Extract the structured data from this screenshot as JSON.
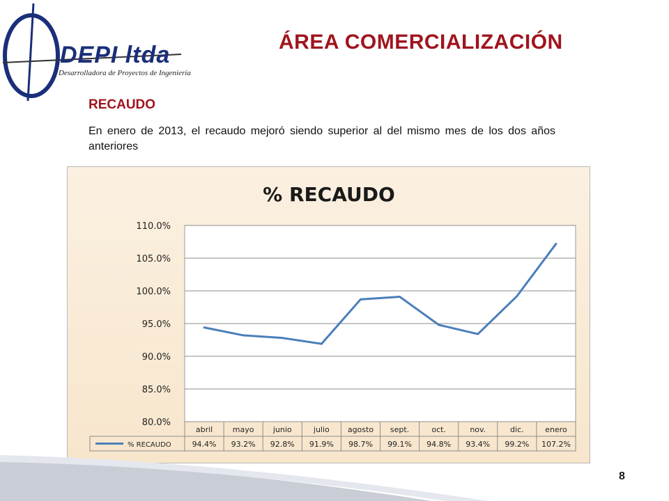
{
  "logo": {
    "name": "DEPI ltda",
    "tagline": "Desarrolladora de Proyectos de Ingeniería"
  },
  "slide": {
    "title": "ÁREA COMERCIALIZACIÓN",
    "section": "RECAUDO",
    "text": "En enero de 2013, el recaudo mejoró siendo superior al del mismo mes de los dos años anteriores",
    "page_number": "8"
  },
  "colors": {
    "title": "#a0141e",
    "series": "#4a7ebb",
    "chart_bg": "#f9ebd6"
  },
  "chart_data": {
    "type": "line",
    "title": "% RECAUDO",
    "categories": [
      "abril",
      "mayo",
      "junio",
      "julio",
      "agosto",
      "sept.",
      "oct.",
      "nov.",
      "dic.",
      "enero"
    ],
    "series": [
      {
        "name": "% RECAUDO",
        "values": [
          94.4,
          93.2,
          92.8,
          91.9,
          98.7,
          99.1,
          94.8,
          93.4,
          99.2,
          107.2
        ],
        "labels": [
          "94.4%",
          "93.2%",
          "92.8%",
          "91.9%",
          "98.7%",
          "99.1%",
          "94.8%",
          "93.4%",
          "99.2%",
          "107.2%"
        ]
      }
    ],
    "ylim": [
      80,
      110
    ],
    "yticks": [
      "80.0%",
      "85.0%",
      "90.0%",
      "95.0%",
      "100.0%",
      "105.0%",
      "110.0%"
    ],
    "grid": true,
    "legend": "data-table"
  }
}
